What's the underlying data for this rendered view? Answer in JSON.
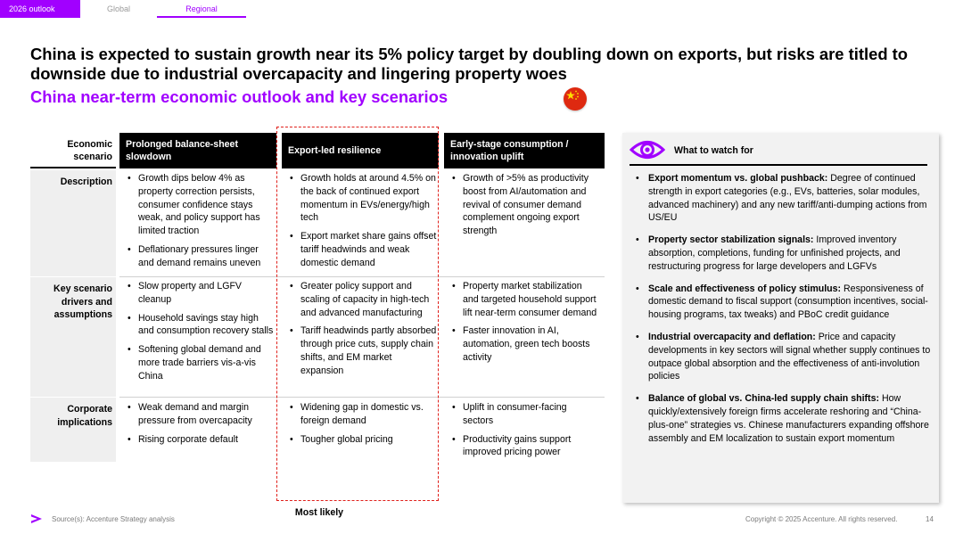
{
  "nav": {
    "outlook": "2026 outlook",
    "global": "Global",
    "regional": "Regional"
  },
  "headline": "China is expected to sustain growth near its 5% policy target by doubling down on exports, but risks are titled to downside due to industrial overcapacity and lingering property woes",
  "subheadline": "China near-term economic outlook and key scenarios",
  "table": {
    "scenario_label": "Economic scenario",
    "columns": [
      "Prolonged balance-sheet slowdown",
      "Export-led resilience",
      "Early-stage consumption / innovation uplift"
    ],
    "rows": [
      {
        "label": "Description",
        "cells": [
          [
            "Growth dips below 4% as property correction persists, consumer confidence stays weak, and policy support has limited traction",
            "Deflationary pressures linger and demand remains uneven"
          ],
          [
            "Growth holds at around 4.5% on the back of continued export momentum in EVs/energy/high tech",
            "Export market share gains offset tariff headwinds and weak domestic demand"
          ],
          [
            "Growth of >5% as productivity boost from AI/automation and revival of consumer demand complement ongoing export strength"
          ]
        ]
      },
      {
        "label": "Key scenario drivers and assumptions",
        "cells": [
          [
            "Slow property and LGFV cleanup",
            "Household savings stay high and consumption recovery stalls",
            "Softening global demand and more trade barriers vis-a-vis China"
          ],
          [
            "Greater policy support and scaling of capacity in high-tech and advanced manufacturing",
            "Tariff headwinds partly absorbed through price cuts, supply chain shifts, and EM market expansion"
          ],
          [
            "Property market stabilization and targeted household support lift near-term consumer demand",
            "Faster innovation in AI, automation, green tech boosts activity"
          ]
        ]
      },
      {
        "label": "Corporate implications",
        "cells": [
          [
            "Weak demand and margin pressure from overcapacity",
            "Rising corporate default"
          ],
          [
            "Widening gap in domestic vs. foreign demand",
            "Tougher global pricing"
          ],
          [
            "Uplift in consumer-facing sectors",
            "Productivity gains support improved pricing power"
          ]
        ]
      }
    ],
    "most_likely": "Most likely"
  },
  "watch": {
    "title": "What to watch for",
    "items": [
      {
        "lead": "Export momentum vs. global pushback:",
        "text": " Degree of continued strength in export categories (e.g., EVs, batteries, solar modules, advanced machinery) and any new tariff/anti-dumping actions from US/EU"
      },
      {
        "lead": "Property sector stabilization signals:",
        "text": " Improved inventory absorption, completions, funding for unfinished projects, and restructuring progress for large developers and LGFVs"
      },
      {
        "lead": "Scale and effectiveness of policy stimulus:",
        "text": " Responsiveness of domestic demand to fiscal support (consumption incentives, social-housing programs, tax tweaks) and PBoC credit guidance"
      },
      {
        "lead": "Industrial overcapacity and deflation:",
        "text": " Price and capacity developments in key sectors will signal whether supply continues to outpace global absorption and the effectiveness of anti-involution policies"
      },
      {
        "lead": "Balance of global vs. China-led supply chain shifts:",
        "text": " How quickly/extensively foreign firms accelerate reshoring and “China-plus-one” strategies vs. Chinese manufacturers expanding offshore assembly and EM localization to sustain export momentum"
      }
    ]
  },
  "footer": {
    "source": "Source(s): Accenture Strategy analysis",
    "copyright": "Copyright © 2025 Accenture. All rights reserved.",
    "page": "14"
  },
  "colors": {
    "accent": "#a100ff",
    "flag_red": "#de2910",
    "flag_star": "#ffde00",
    "highlight_box": "#e0201b"
  },
  "icons": [
    "eye-icon",
    "china-flag-icon",
    "accenture-logo-icon"
  ]
}
